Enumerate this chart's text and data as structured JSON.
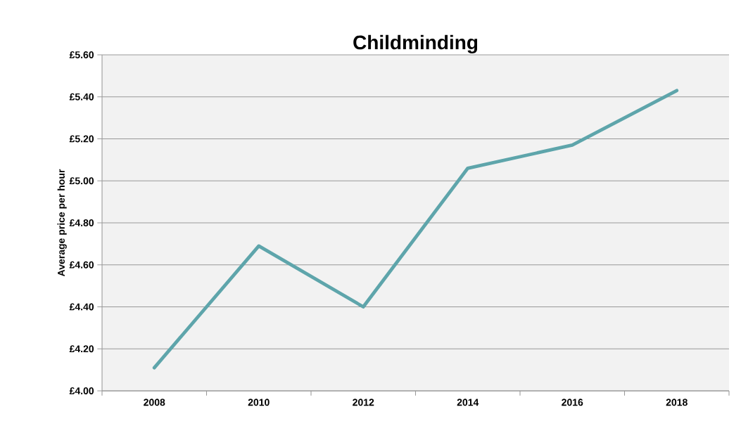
{
  "chart_data": {
    "type": "line",
    "title": "Childminding",
    "ylabel": "Average price per hour",
    "categories": [
      "2008",
      "2010",
      "2012",
      "2014",
      "2016",
      "2018"
    ],
    "series": [
      {
        "color": "#5ea5ab",
        "values": [
          4.11,
          4.69,
          4.4,
          5.06,
          5.17,
          5.43
        ]
      }
    ],
    "ylim": [
      4.0,
      5.6
    ],
    "yticks": [
      {
        "value": 4.0,
        "label": "£4.00"
      },
      {
        "value": 4.2,
        "label": "£4.20"
      },
      {
        "value": 4.4,
        "label": "£4.40"
      },
      {
        "value": 4.6,
        "label": "£4.60"
      },
      {
        "value": 4.8,
        "label": "£4.80"
      },
      {
        "value": 5.0,
        "label": "£5.00"
      },
      {
        "value": 5.2,
        "label": "£5.20"
      },
      {
        "value": 5.4,
        "label": "£5.40"
      },
      {
        "value": 5.6,
        "label": "£5.60"
      }
    ],
    "grid": "y",
    "legend": false,
    "marker": "none",
    "line_style": "solid"
  }
}
